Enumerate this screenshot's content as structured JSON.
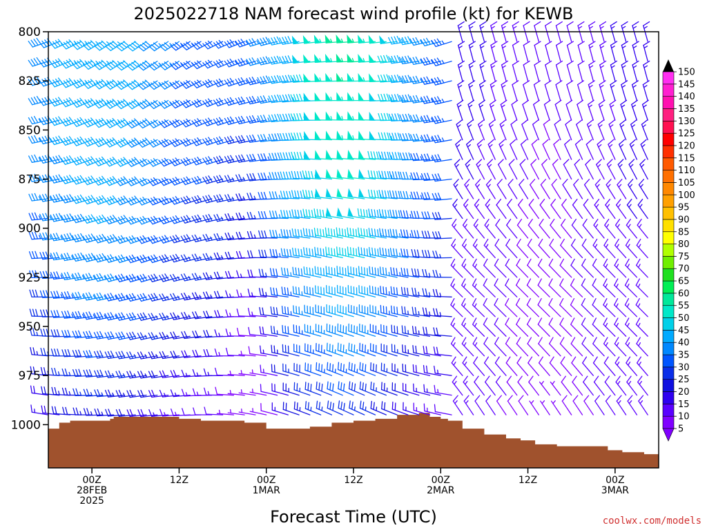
{
  "chart_data": {
    "type": "wind-barb-time-height",
    "title": "2025022718 NAM forecast wind profile (kt) for KEWB",
    "xlabel": "Forecast Time (UTC)",
    "ylabel": "",
    "credit": "coolwx.com/models",
    "y_ticks": [
      800,
      825,
      850,
      875,
      900,
      925,
      950,
      975,
      1000
    ],
    "ylim": [
      1022,
      800
    ],
    "x_ticks": [
      {
        "hour": 6,
        "lines": [
          "00Z",
          "28FEB",
          "2025"
        ]
      },
      {
        "hour": 18,
        "lines": [
          "12Z"
        ]
      },
      {
        "hour": 30,
        "lines": [
          "00Z",
          "1MAR"
        ]
      },
      {
        "hour": 42,
        "lines": [
          "12Z"
        ]
      },
      {
        "hour": 54,
        "lines": [
          "00Z",
          "2MAR"
        ]
      },
      {
        "hour": 66,
        "lines": [
          "12Z"
        ]
      },
      {
        "hour": 78,
        "lines": [
          "00Z",
          "3MAR"
        ]
      }
    ],
    "xlim": [
      0,
      84
    ],
    "colorbar": {
      "units": "kt",
      "labels": [
        5,
        10,
        15,
        20,
        25,
        30,
        35,
        40,
        45,
        50,
        55,
        60,
        65,
        70,
        75,
        80,
        85,
        90,
        95,
        100,
        105,
        110,
        115,
        120,
        125,
        130,
        135,
        140,
        145,
        150
      ],
      "colors": [
        "#8000ff",
        "#5a00ff",
        "#2f00f0",
        "#1010e0",
        "#0a2ee8",
        "#0055ff",
        "#0088ff",
        "#00aaff",
        "#00d0e8",
        "#00e8c8",
        "#00e89a",
        "#00ee55",
        "#20e020",
        "#70ee00",
        "#b0ff00",
        "#ffff00",
        "#ffe000",
        "#ffc000",
        "#ffa000",
        "#ff8800",
        "#ff7000",
        "#ff5a00",
        "#ff3000",
        "#ff0000",
        "#ff1050",
        "#ff2080",
        "#ff10b0",
        "#ff20d0",
        "#ff30f0"
      ],
      "over_color": "#000000",
      "under_color": "#8000ff"
    },
    "surface_pressure": [
      [
        0,
        1002
      ],
      [
        1.5,
        999
      ],
      [
        3,
        998
      ],
      [
        6,
        998
      ],
      [
        8.5,
        997
      ],
      [
        9,
        996
      ],
      [
        12,
        996
      ],
      [
        15,
        996
      ],
      [
        18,
        997
      ],
      [
        21,
        998
      ],
      [
        24,
        998
      ],
      [
        27,
        999
      ],
      [
        30,
        1002
      ],
      [
        33,
        1002
      ],
      [
        36,
        1001
      ],
      [
        39,
        999
      ],
      [
        42,
        998
      ],
      [
        45,
        997
      ],
      [
        48,
        995
      ],
      [
        51,
        994
      ],
      [
        52.5,
        996
      ],
      [
        54,
        997
      ],
      [
        55,
        998
      ],
      [
        57,
        1002
      ],
      [
        60,
        1005
      ],
      [
        63,
        1007
      ],
      [
        65,
        1008
      ],
      [
        67,
        1010
      ],
      [
        70,
        1011
      ],
      [
        75,
        1011
      ],
      [
        77,
        1013
      ],
      [
        79,
        1014
      ],
      [
        82,
        1015
      ],
      [
        84,
        1016
      ]
    ],
    "surface_color": "#a0522d",
    "wind_levels": [
      805,
      815,
      825,
      835,
      845,
      855,
      865,
      875,
      885,
      895,
      905,
      915,
      925,
      935,
      945,
      955,
      965,
      975,
      985,
      995
    ],
    "wind_times": [
      0,
      1.5,
      3,
      4.5,
      6,
      7.5,
      9,
      10.5,
      12,
      13.5,
      15,
      16.5,
      18,
      19.5,
      21,
      22.5,
      24,
      25.5,
      27,
      28.5,
      30,
      31.5,
      33,
      34.5,
      36,
      37.5,
      39,
      40.5,
      42,
      43.5,
      45,
      46.5,
      48,
      49.5,
      51,
      52.5,
      54,
      55.5,
      57,
      58.5,
      60,
      61.5,
      63,
      64.5,
      66,
      67.5,
      69,
      70.5,
      72,
      73.5,
      75,
      76.5,
      78,
      79.5,
      81,
      82.5
    ]
  }
}
